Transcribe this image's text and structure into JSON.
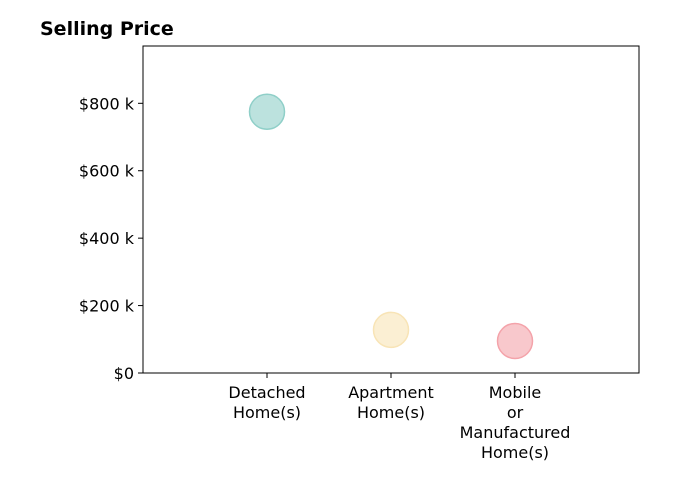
{
  "chart_data": {
    "type": "scatter",
    "title": "Selling Price",
    "xlabel": "",
    "ylabel": "",
    "categories": [
      [
        "Detached",
        "Home(s)"
      ],
      [
        "Apartment",
        "Home(s)"
      ],
      [
        "Mobile",
        "or",
        "Manufactured",
        "Home(s)"
      ]
    ],
    "points": [
      {
        "category_index": 0,
        "value": 775000,
        "color": "#8fcfc8"
      },
      {
        "category_index": 1,
        "value": 128000,
        "color": "#f8e4b6"
      },
      {
        "category_index": 2,
        "value": 95000,
        "color": "#f4a3aa"
      }
    ],
    "yticks": [
      {
        "value": 0,
        "label": "$0"
      },
      {
        "value": 200000,
        "label": "$200 k"
      },
      {
        "value": 400000,
        "label": "$400 k"
      },
      {
        "value": 600000,
        "label": "$600 k"
      },
      {
        "value": 800000,
        "label": "$800 k"
      }
    ],
    "ylim": [
      0,
      970000
    ],
    "xlim": [
      -1,
      3
    ],
    "grid": false,
    "legend": "none"
  }
}
